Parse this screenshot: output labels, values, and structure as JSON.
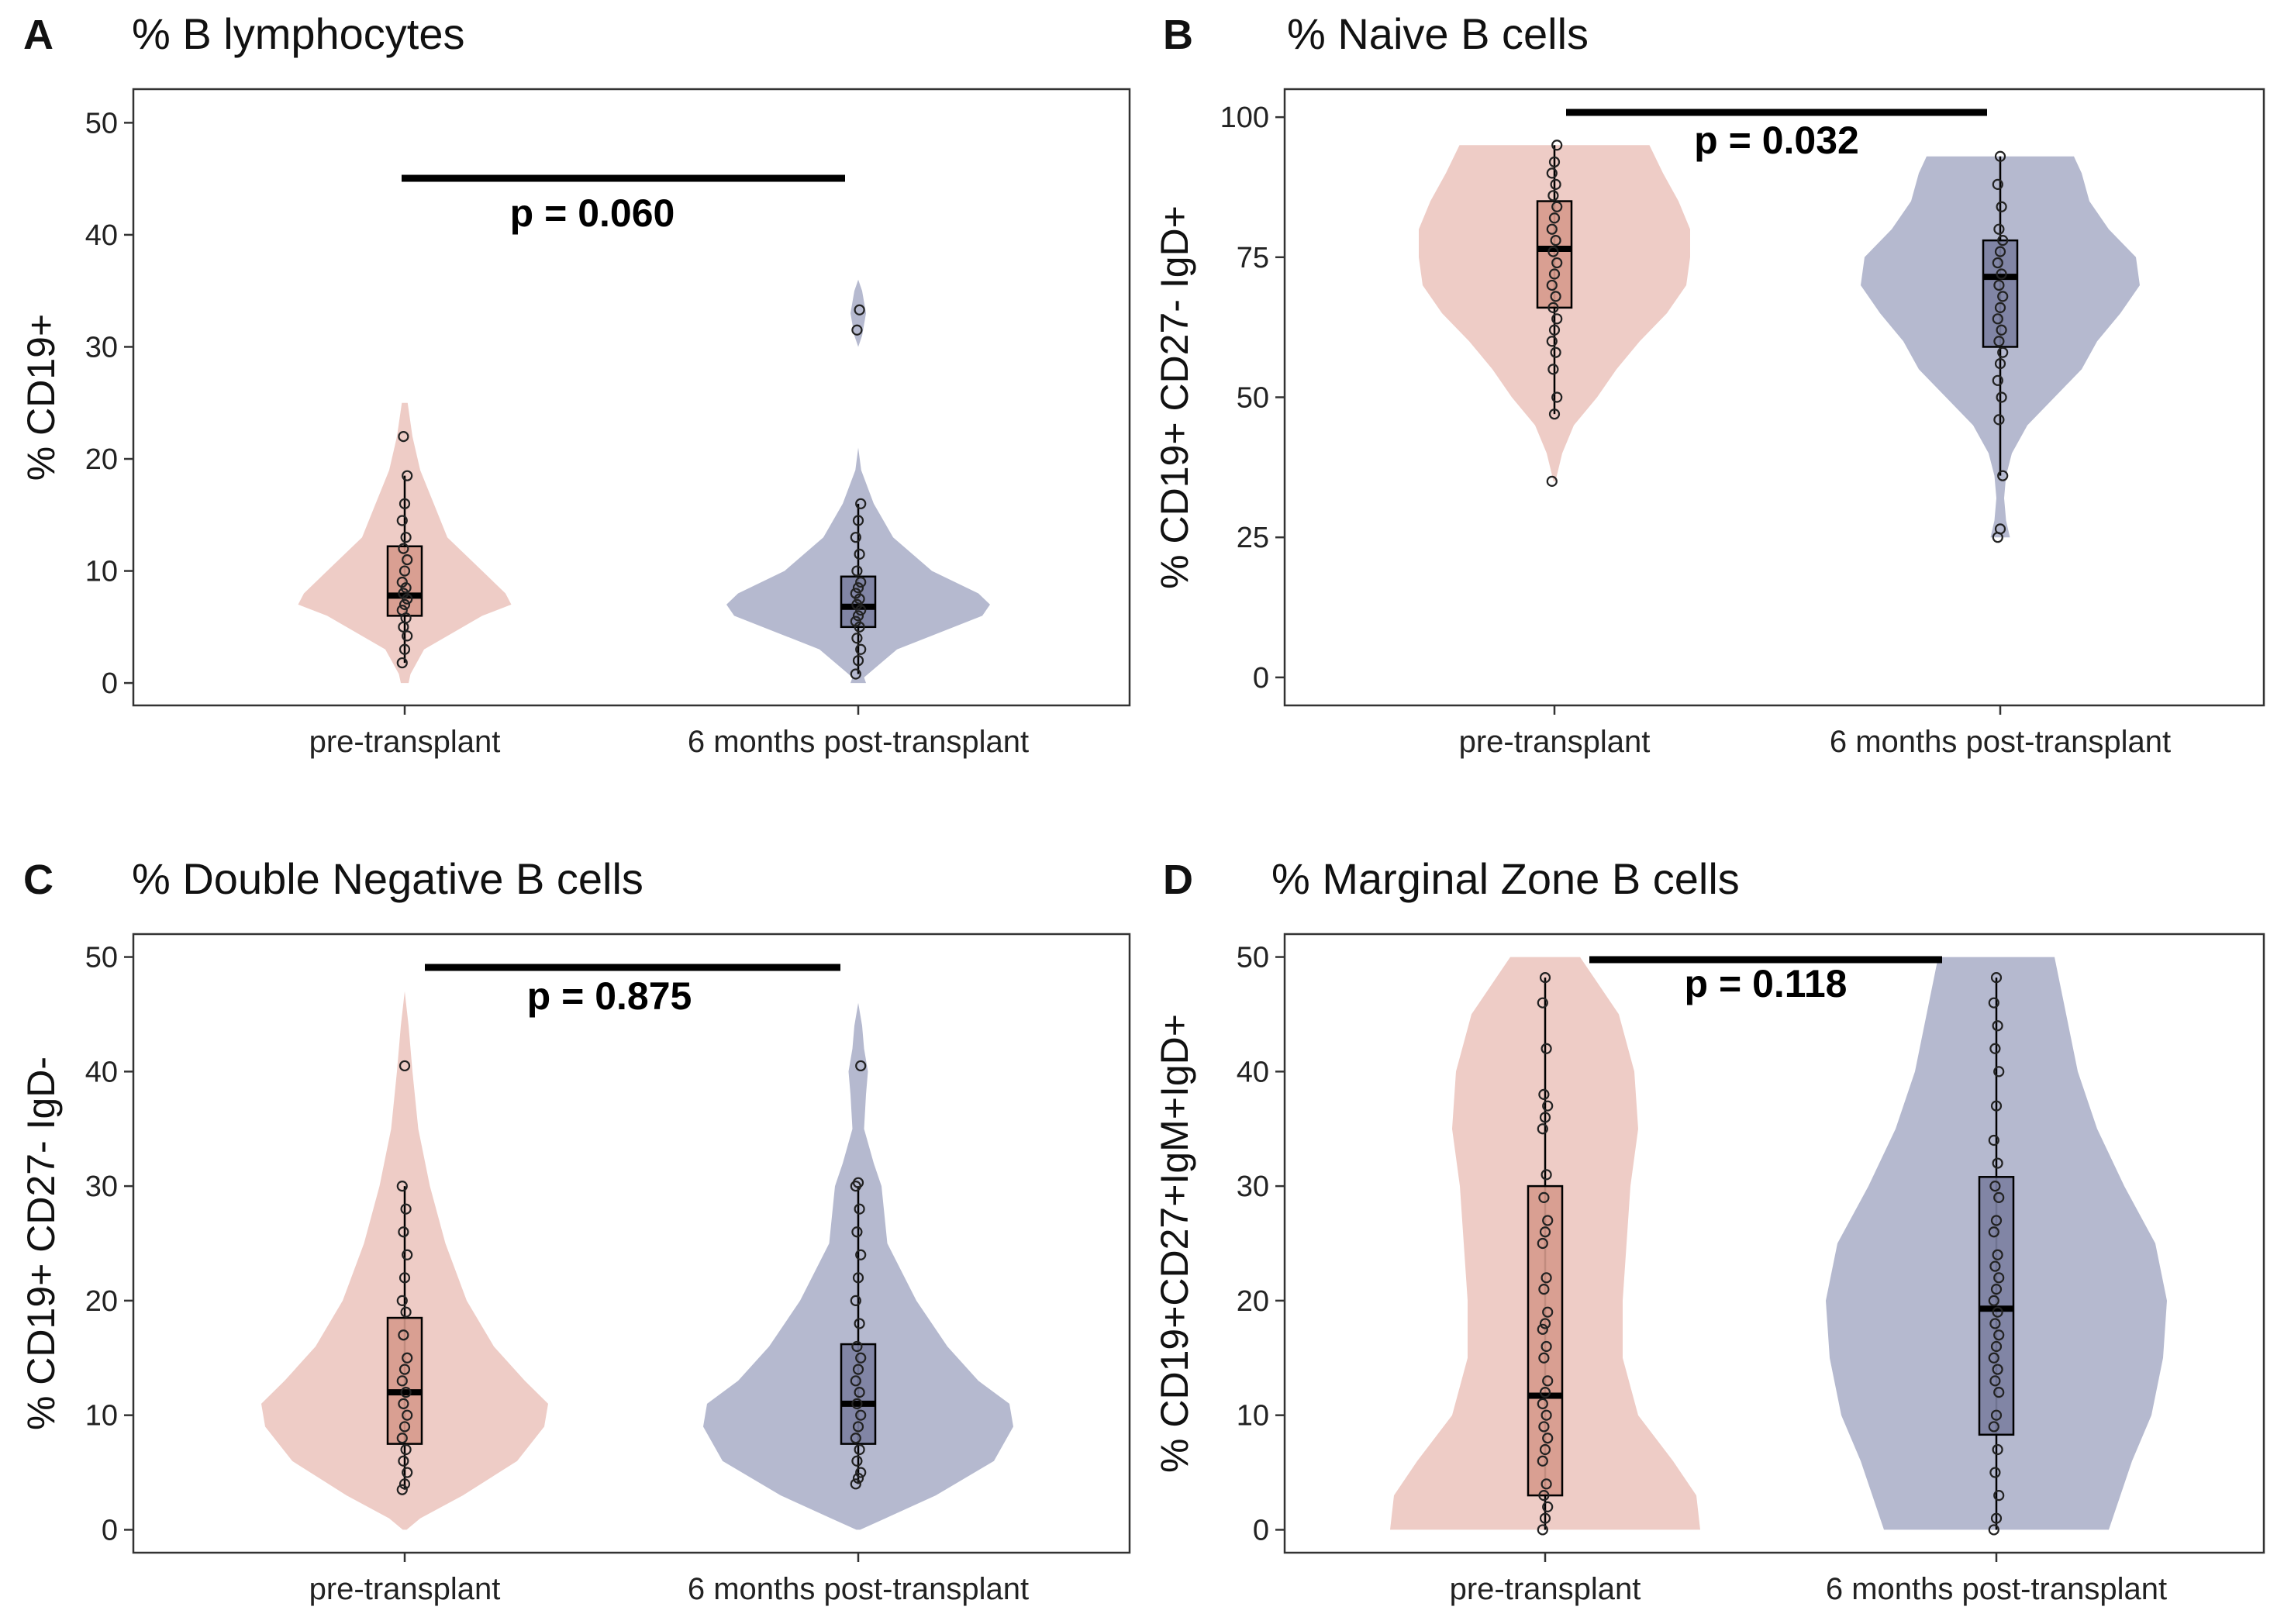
{
  "colors": {
    "pre_violin": "#eeccc6",
    "post_violin": "#b5b9cf",
    "pre_box": "#d69a8c",
    "post_box": "#7b7fa0",
    "ink": "#000000"
  },
  "chart_data": [
    {
      "type": "violin",
      "letter": "A",
      "title": "% B lymphocytes",
      "ylabel": "% CD19+",
      "ylim": [
        -2,
        53
      ],
      "yticks": [
        0,
        10,
        20,
        30,
        40,
        50
      ],
      "categories": [
        "pre-transplant",
        "6 months post-transplant"
      ],
      "pvalue": "p = 0.060",
      "groups": [
        {
          "name": "pre-transplant",
          "box": {
            "q1": 6,
            "median": 7.8,
            "q3": 12.2,
            "wmin": 1.8,
            "wmax": 18.5
          },
          "points": [
            1.8,
            3,
            4.2,
            5,
            5.8,
            6.5,
            7,
            7.5,
            8,
            8.5,
            9,
            10,
            11,
            12,
            13,
            14.5,
            16,
            18.5,
            22
          ],
          "violin": [
            [
              0,
              2
            ],
            [
              0.8,
              3
            ],
            [
              3,
              10
            ],
            [
              6,
              40
            ],
            [
              7,
              55
            ],
            [
              8,
              52
            ],
            [
              10,
              40
            ],
            [
              13,
              22
            ],
            [
              16,
              15
            ],
            [
              19,
              8
            ],
            [
              22,
              4
            ],
            [
              25,
              1.5
            ]
          ]
        },
        {
          "name": "6 months post-transplant",
          "box": {
            "q1": 5,
            "median": 6.8,
            "q3": 9.5,
            "wmin": 0.8,
            "wmax": 16
          },
          "points": [
            0.8,
            2,
            3,
            4,
            5,
            5.5,
            6,
            6.5,
            7,
            7.5,
            8,
            8.5,
            9,
            10,
            11.5,
            13,
            14.5,
            16,
            31.5,
            33.3
          ],
          "violin": [
            [
              0,
              4
            ],
            [
              0.5,
              3
            ],
            [
              3,
              20
            ],
            [
              6,
              64
            ],
            [
              7,
              68
            ],
            [
              8,
              62
            ],
            [
              10,
              38
            ],
            [
              13,
              18
            ],
            [
              16,
              8
            ],
            [
              19,
              1.5
            ],
            [
              21,
              0
            ],
            [
              30,
              0
            ],
            [
              31,
              2
            ],
            [
              33,
              4
            ],
            [
              35,
              2
            ],
            [
              36,
              0
            ]
          ]
        }
      ]
    },
    {
      "type": "violin",
      "letter": "B",
      "title": "% Naive B cells",
      "ylabel": "% CD19+ CD27- IgD+",
      "ylim": [
        -5,
        105
      ],
      "yticks": [
        0,
        25,
        50,
        75,
        100
      ],
      "categories": [
        "pre-transplant",
        "6 months post-transplant"
      ],
      "pvalue": "p = 0.032",
      "groups": [
        {
          "name": "pre-transplant",
          "box": {
            "q1": 66,
            "median": 76.5,
            "q3": 85,
            "wmin": 47,
            "wmax": 95
          },
          "points": [
            35,
            47,
            50,
            55,
            58,
            60,
            62,
            64,
            66,
            68,
            70,
            72,
            74,
            76,
            78,
            80,
            82,
            84,
            86,
            88,
            90,
            92,
            95
          ],
          "violin": [
            [
              35,
              0.5
            ],
            [
              40,
              4
            ],
            [
              45,
              10
            ],
            [
              50,
              22
            ],
            [
              55,
              32
            ],
            [
              60,
              44
            ],
            [
              65,
              58
            ],
            [
              70,
              68
            ],
            [
              75,
              70
            ],
            [
              80,
              70
            ],
            [
              85,
              64
            ],
            [
              90,
              56
            ],
            [
              95,
              49
            ]
          ]
        },
        {
          "name": "6 months post-transplant",
          "box": {
            "q1": 59,
            "median": 71.5,
            "q3": 78,
            "wmin": 36,
            "wmax": 93
          },
          "points": [
            25,
            26.5,
            36,
            46,
            50,
            53,
            56,
            58,
            60,
            62,
            64,
            66,
            68,
            70,
            72,
            74,
            76,
            78,
            80,
            84,
            88,
            93
          ],
          "violin": [
            [
              25,
              5
            ],
            [
              28,
              3
            ],
            [
              32,
              2
            ],
            [
              36,
              3
            ],
            [
              40,
              6
            ],
            [
              45,
              14
            ],
            [
              50,
              28
            ],
            [
              55,
              42
            ],
            [
              60,
              50
            ],
            [
              65,
              62
            ],
            [
              70,
              72
            ],
            [
              75,
              70
            ],
            [
              80,
              56
            ],
            [
              85,
              46
            ],
            [
              90,
              42
            ],
            [
              93,
              38
            ]
          ]
        }
      ]
    },
    {
      "type": "violin",
      "letter": "C",
      "title": "% Double Negative B cells",
      "ylabel": "% CD19+ CD27- IgD-",
      "ylim": [
        -2,
        52
      ],
      "yticks": [
        0,
        10,
        20,
        30,
        40,
        50
      ],
      "categories": [
        "pre-transplant",
        "6 months post-transplant"
      ],
      "pvalue": "p = 0.875",
      "groups": [
        {
          "name": "pre-transplant",
          "box": {
            "q1": 7.5,
            "median": 12,
            "q3": 18.5,
            "wmin": 3.5,
            "wmax": 30
          },
          "points": [
            3.5,
            4,
            5,
            6,
            7,
            8,
            9,
            10,
            11,
            12,
            13,
            14,
            15,
            17,
            19,
            20,
            22,
            24,
            26,
            28,
            30,
            40.5
          ],
          "violin": [
            [
              0,
              1
            ],
            [
              1,
              8
            ],
            [
              3,
              30
            ],
            [
              6,
              58
            ],
            [
              9,
              72
            ],
            [
              11,
              74
            ],
            [
              13,
              62
            ],
            [
              16,
              46
            ],
            [
              20,
              32
            ],
            [
              25,
              21
            ],
            [
              30,
              13
            ],
            [
              35,
              7
            ],
            [
              40,
              4
            ],
            [
              44,
              2
            ],
            [
              47,
              0
            ]
          ]
        },
        {
          "name": "6 months post-transplant",
          "box": {
            "q1": 7.5,
            "median": 11,
            "q3": 16.2,
            "wmin": 4,
            "wmax": 30
          },
          "points": [
            4,
            4.5,
            5,
            6,
            7,
            8,
            9,
            10,
            11,
            12,
            13,
            14,
            15,
            16,
            18,
            20,
            22,
            24,
            26,
            28,
            30,
            30.3,
            40.5
          ],
          "violin": [
            [
              0,
              1
            ],
            [
              1,
              14
            ],
            [
              3,
              40
            ],
            [
              6,
              70
            ],
            [
              9,
              80
            ],
            [
              11,
              78
            ],
            [
              13,
              62
            ],
            [
              16,
              46
            ],
            [
              20,
              30
            ],
            [
              25,
              15
            ],
            [
              30,
              12
            ],
            [
              32,
              8
            ],
            [
              35,
              3
            ],
            [
              38,
              4
            ],
            [
              40,
              5
            ],
            [
              42,
              3
            ],
            [
              44,
              2
            ],
            [
              46,
              0
            ]
          ]
        }
      ]
    },
    {
      "type": "violin",
      "letter": "D",
      "title": "% Marginal Zone B cells",
      "ylabel": "% CD19+CD27+IgM+IgD+",
      "ylim": [
        -2,
        52
      ],
      "yticks": [
        0,
        10,
        20,
        30,
        40,
        50
      ],
      "categories": [
        "pre-transplant",
        "6 months post-transplant"
      ],
      "pvalue": "p = 0.118",
      "groups": [
        {
          "name": "pre-transplant",
          "box": {
            "q1": 3,
            "median": 11.7,
            "q3": 30,
            "wmin": 0,
            "wmax": 48.2
          },
          "points": [
            0,
            1,
            2,
            3,
            4,
            6,
            7,
            8,
            9,
            10,
            11,
            12,
            13,
            15,
            16,
            17.5,
            18,
            19,
            21,
            22,
            25,
            26,
            27,
            29,
            31,
            35,
            36,
            37,
            38,
            42,
            46,
            48.2
          ],
          "violin": [
            [
              0,
              80
            ],
            [
              3,
              78
            ],
            [
              6,
              66
            ],
            [
              10,
              48
            ],
            [
              15,
              40
            ],
            [
              20,
              40
            ],
            [
              25,
              42
            ],
            [
              30,
              44
            ],
            [
              35,
              48
            ],
            [
              40,
              46
            ],
            [
              45,
              38
            ],
            [
              50,
              18
            ]
          ]
        },
        {
          "name": "6 months post-transplant",
          "box": {
            "q1": 8.3,
            "median": 19.3,
            "q3": 30.8,
            "wmin": 0,
            "wmax": 48.2
          },
          "points": [
            0,
            1,
            3,
            5,
            7,
            9,
            10,
            12,
            13,
            14,
            15,
            16,
            17,
            18,
            19,
            20,
            21,
            22,
            23,
            24,
            26,
            27,
            29,
            30,
            32,
            34,
            37,
            40,
            42,
            44,
            46,
            48.2
          ],
          "violin": [
            [
              0,
              58
            ],
            [
              3,
              64
            ],
            [
              6,
              70
            ],
            [
              10,
              80
            ],
            [
              15,
              86
            ],
            [
              20,
              88
            ],
            [
              25,
              82
            ],
            [
              30,
              66
            ],
            [
              35,
              52
            ],
            [
              40,
              42
            ],
            [
              45,
              36
            ],
            [
              50,
              30
            ]
          ]
        }
      ]
    }
  ]
}
